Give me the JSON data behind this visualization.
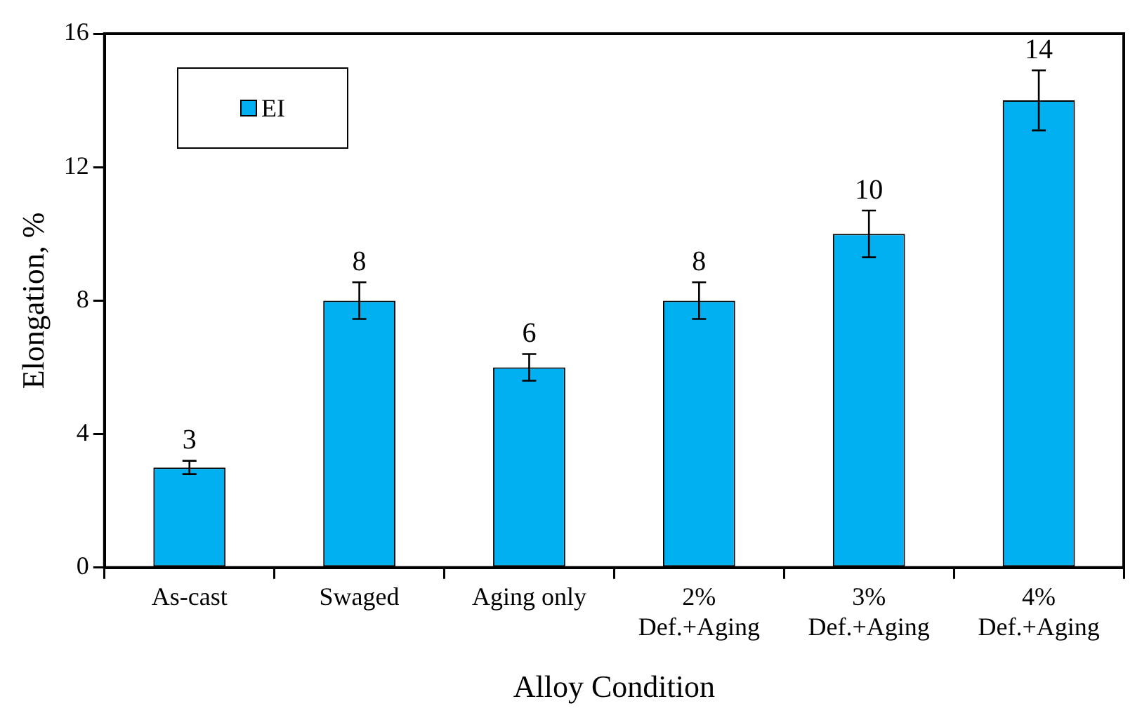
{
  "chart_data": {
    "type": "bar",
    "xlabel": "Alloy Condition",
    "ylabel": "Elongation, %",
    "categories": [
      "As-cast",
      "Swaged",
      "Aging only",
      "2%\nDef.+Aging",
      "3%\nDef.+Aging",
      "4%\nDef.+Aging"
    ],
    "series": [
      {
        "name": "EI",
        "color": "#00b0f0",
        "values": [
          3,
          8,
          6,
          8,
          10,
          14
        ],
        "errors": [
          0.2,
          0.55,
          0.4,
          0.55,
          0.7,
          0.9
        ]
      }
    ],
    "ylim": [
      0,
      16
    ],
    "yticks": [
      0,
      4,
      8,
      12,
      16
    ],
    "grid": false,
    "legend": "top left",
    "data_labels": true
  }
}
